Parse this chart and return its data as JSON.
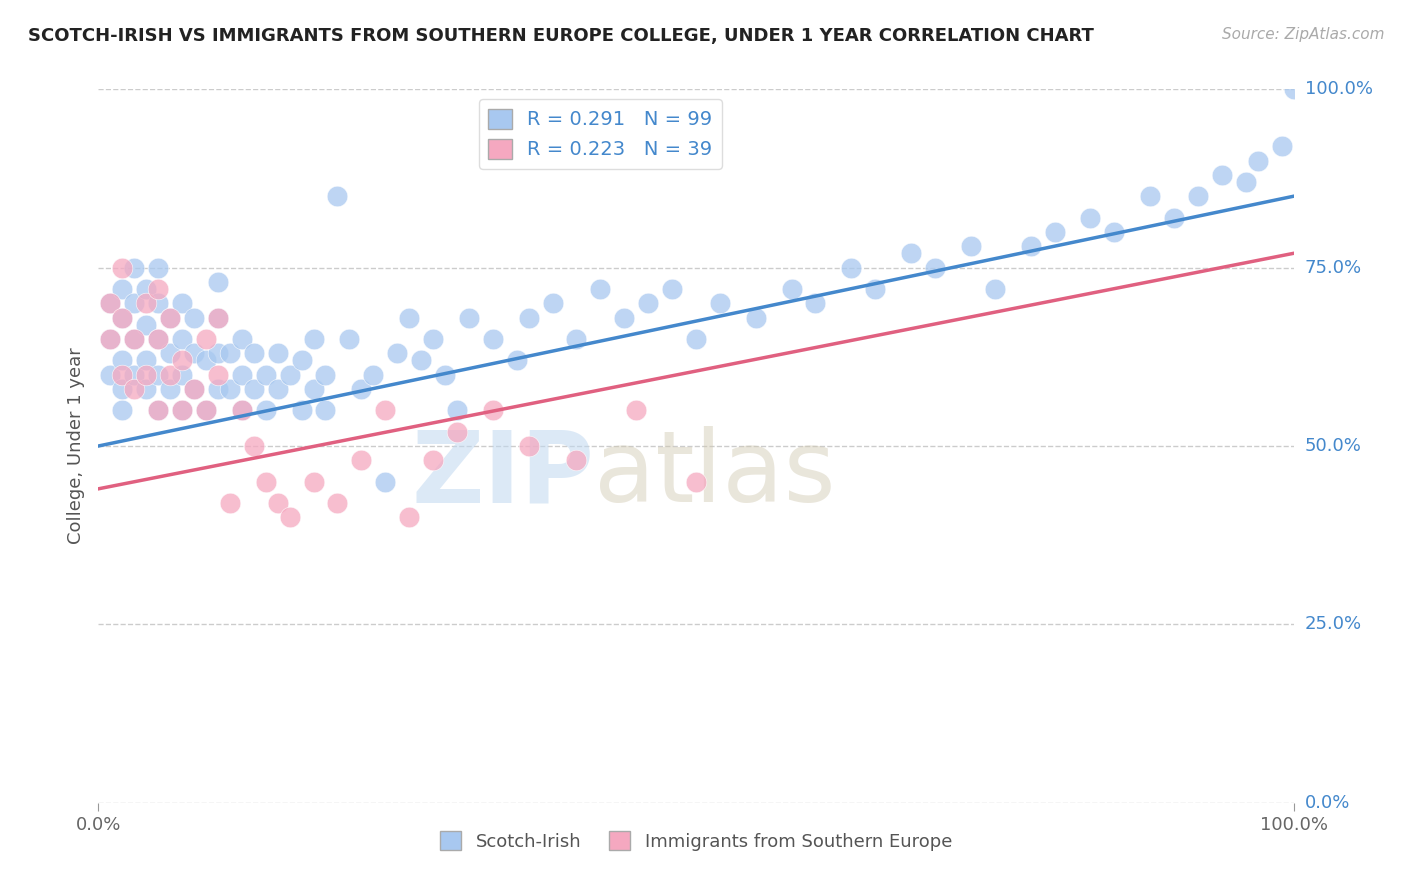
{
  "title": "SCOTCH-IRISH VS IMMIGRANTS FROM SOUTHERN EUROPE COLLEGE, UNDER 1 YEAR CORRELATION CHART",
  "source_text": "Source: ZipAtlas.com",
  "ylabel": "College, Under 1 year",
  "xlabel": "",
  "xlim": [
    0.0,
    1.0
  ],
  "ylim": [
    0.0,
    1.0
  ],
  "xtick_labels": [
    "0.0%",
    "100.0%"
  ],
  "ytick_labels": [
    "0.0%",
    "25.0%",
    "50.0%",
    "75.0%",
    "100.0%"
  ],
  "ytick_positions": [
    0.0,
    0.25,
    0.5,
    0.75,
    1.0
  ],
  "blue_R": 0.291,
  "blue_N": 99,
  "pink_R": 0.223,
  "pink_N": 39,
  "blue_color": "#A8C8F0",
  "pink_color": "#F5A8C0",
  "blue_line_color": "#4488CC",
  "pink_line_color": "#E06080",
  "legend_label_blue": "Scotch-Irish",
  "legend_label_pink": "Immigrants from Southern Europe",
  "blue_line_x0": 0.0,
  "blue_line_x1": 1.0,
  "blue_line_y0": 0.5,
  "blue_line_y1": 0.85,
  "pink_line_x0": 0.0,
  "pink_line_x1": 1.0,
  "pink_line_y0": 0.44,
  "pink_line_y1": 0.77,
  "blue_scatter_x": [
    0.01,
    0.01,
    0.01,
    0.02,
    0.02,
    0.02,
    0.02,
    0.02,
    0.03,
    0.03,
    0.03,
    0.03,
    0.04,
    0.04,
    0.04,
    0.04,
    0.05,
    0.05,
    0.05,
    0.05,
    0.05,
    0.06,
    0.06,
    0.06,
    0.07,
    0.07,
    0.07,
    0.07,
    0.08,
    0.08,
    0.08,
    0.09,
    0.09,
    0.1,
    0.1,
    0.1,
    0.1,
    0.11,
    0.11,
    0.12,
    0.12,
    0.12,
    0.13,
    0.13,
    0.14,
    0.14,
    0.15,
    0.15,
    0.16,
    0.17,
    0.17,
    0.18,
    0.18,
    0.19,
    0.19,
    0.2,
    0.21,
    0.22,
    0.23,
    0.24,
    0.25,
    0.26,
    0.27,
    0.28,
    0.29,
    0.3,
    0.31,
    0.33,
    0.35,
    0.36,
    0.38,
    0.4,
    0.42,
    0.44,
    0.46,
    0.48,
    0.5,
    0.52,
    0.55,
    0.58,
    0.6,
    0.63,
    0.65,
    0.68,
    0.7,
    0.73,
    0.75,
    0.78,
    0.8,
    0.83,
    0.85,
    0.88,
    0.9,
    0.92,
    0.94,
    0.96,
    0.97,
    0.99,
    1.0
  ],
  "blue_scatter_y": [
    0.6,
    0.65,
    0.7,
    0.55,
    0.62,
    0.68,
    0.72,
    0.58,
    0.6,
    0.65,
    0.7,
    0.75,
    0.58,
    0.62,
    0.67,
    0.72,
    0.55,
    0.6,
    0.65,
    0.7,
    0.75,
    0.58,
    0.63,
    0.68,
    0.55,
    0.6,
    0.65,
    0.7,
    0.58,
    0.63,
    0.68,
    0.55,
    0.62,
    0.58,
    0.63,
    0.68,
    0.73,
    0.58,
    0.63,
    0.55,
    0.6,
    0.65,
    0.58,
    0.63,
    0.55,
    0.6,
    0.58,
    0.63,
    0.6,
    0.55,
    0.62,
    0.58,
    0.65,
    0.55,
    0.6,
    0.85,
    0.65,
    0.58,
    0.6,
    0.45,
    0.63,
    0.68,
    0.62,
    0.65,
    0.6,
    0.55,
    0.68,
    0.65,
    0.62,
    0.68,
    0.7,
    0.65,
    0.72,
    0.68,
    0.7,
    0.72,
    0.65,
    0.7,
    0.68,
    0.72,
    0.7,
    0.75,
    0.72,
    0.77,
    0.75,
    0.78,
    0.72,
    0.78,
    0.8,
    0.82,
    0.8,
    0.85,
    0.82,
    0.85,
    0.88,
    0.87,
    0.9,
    0.92,
    1.0
  ],
  "pink_scatter_x": [
    0.01,
    0.01,
    0.02,
    0.02,
    0.02,
    0.03,
    0.03,
    0.04,
    0.04,
    0.05,
    0.05,
    0.05,
    0.06,
    0.06,
    0.07,
    0.07,
    0.08,
    0.09,
    0.09,
    0.1,
    0.1,
    0.11,
    0.12,
    0.13,
    0.14,
    0.15,
    0.16,
    0.18,
    0.2,
    0.22,
    0.24,
    0.26,
    0.28,
    0.3,
    0.33,
    0.36,
    0.4,
    0.45,
    0.5
  ],
  "pink_scatter_y": [
    0.65,
    0.7,
    0.6,
    0.68,
    0.75,
    0.58,
    0.65,
    0.6,
    0.7,
    0.55,
    0.65,
    0.72,
    0.6,
    0.68,
    0.55,
    0.62,
    0.58,
    0.55,
    0.65,
    0.6,
    0.68,
    0.42,
    0.55,
    0.5,
    0.45,
    0.42,
    0.4,
    0.45,
    0.42,
    0.48,
    0.55,
    0.4,
    0.48,
    0.52,
    0.55,
    0.5,
    0.48,
    0.55,
    0.45
  ],
  "watermark_zip": "ZIP",
  "watermark_atlas": "atlas",
  "background_color": "#FFFFFF",
  "grid_color": "#CCCCCC"
}
